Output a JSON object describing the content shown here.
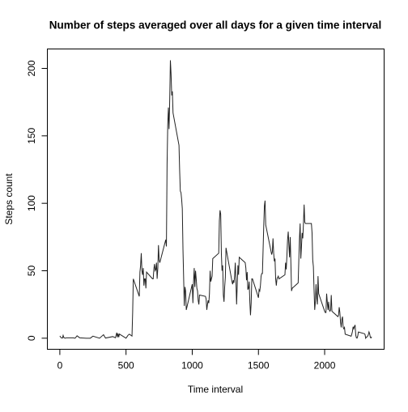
{
  "chart_data": {
    "type": "line",
    "title": "Number of steps averaged over all days for a given time interval",
    "x_label": "Time interval",
    "y_label": "Steps count",
    "color": "#222222",
    "xlim": [
      -94.2,
      2449.2
    ],
    "ylim": [
      -8.2,
      214.4
    ],
    "xticks": [
      0,
      500,
      1000,
      1500,
      2000
    ],
    "yticks": [
      0,
      50,
      100,
      150,
      200
    ],
    "x": [
      0,
      10,
      20,
      25,
      30,
      40,
      50,
      100,
      115,
      125,
      130,
      150,
      200,
      230,
      250,
      300,
      330,
      345,
      400,
      420,
      430,
      435,
      440,
      445,
      450,
      500,
      515,
      525,
      545,
      550,
      555,
      600,
      605,
      610,
      615,
      620,
      625,
      630,
      635,
      640,
      645,
      650,
      655,
      700,
      705,
      710,
      715,
      720,
      725,
      730,
      735,
      740,
      745,
      750,
      755,
      800,
      805,
      810,
      815,
      820,
      825,
      830,
      835,
      840,
      845,
      850,
      855,
      900,
      905,
      910,
      915,
      920,
      925,
      930,
      935,
      940,
      945,
      950,
      955,
      1000,
      1005,
      1010,
      1015,
      1020,
      1025,
      1030,
      1035,
      1040,
      1045,
      1050,
      1055,
      1100,
      1105,
      1110,
      1115,
      1120,
      1125,
      1130,
      1135,
      1140,
      1145,
      1150,
      1155,
      1200,
      1205,
      1210,
      1215,
      1220,
      1225,
      1230,
      1235,
      1240,
      1245,
      1250,
      1255,
      1300,
      1305,
      1310,
      1315,
      1320,
      1325,
      1330,
      1335,
      1340,
      1345,
      1350,
      1355,
      1400,
      1405,
      1410,
      1415,
      1420,
      1425,
      1430,
      1435,
      1440,
      1445,
      1450,
      1455,
      1500,
      1505,
      1510,
      1515,
      1520,
      1525,
      1530,
      1535,
      1540,
      1545,
      1550,
      1555,
      1600,
      1605,
      1610,
      1615,
      1620,
      1625,
      1630,
      1635,
      1640,
      1645,
      1650,
      1655,
      1700,
      1705,
      1710,
      1715,
      1720,
      1725,
      1730,
      1735,
      1740,
      1745,
      1750,
      1755,
      1800,
      1805,
      1810,
      1815,
      1820,
      1825,
      1830,
      1835,
      1840,
      1845,
      1850,
      1855,
      1900,
      1905,
      1910,
      1915,
      1920,
      1925,
      1930,
      1935,
      1940,
      1945,
      1950,
      1955,
      2000,
      2005,
      2010,
      2015,
      2020,
      2025,
      2030,
      2035,
      2040,
      2045,
      2050,
      2055,
      2100,
      2105,
      2110,
      2115,
      2120,
      2125,
      2130,
      2135,
      2140,
      2145,
      2150,
      2155,
      2200,
      2205,
      2210,
      2215,
      2220,
      2225,
      2230,
      2235,
      2240,
      2245,
      2250,
      2255,
      2300,
      2305,
      2310,
      2315,
      2320,
      2325,
      2330,
      2335,
      2340,
      2345,
      2350,
      2355
    ],
    "values": [
      1.7,
      0.3,
      0.1,
      2.1,
      0.5,
      0,
      0.3,
      0.3,
      0,
      1.1,
      1.8,
      0.3,
      0,
      0,
      1.5,
      0,
      2.6,
      0.1,
      1.2,
      0.3,
      4.1,
      0.7,
      3.5,
      0.8,
      3.1,
      0,
      2.2,
      3,
      1.6,
      19,
      44,
      31,
      49,
      54,
      63,
      50,
      47,
      52,
      39,
      44,
      44,
      37,
      49,
      44,
      44,
      51,
      55,
      50,
      51,
      56,
      44,
      52,
      69,
      58,
      56,
      73,
      68,
      129,
      158,
      171,
      155,
      177,
      206,
      196,
      180,
      183,
      167,
      143,
      124,
      109,
      108,
      103,
      96,
      66,
      45,
      24,
      38,
      35,
      21,
      40,
      26,
      42,
      52,
      38,
      50,
      44,
      37,
      35,
      28,
      25,
      32,
      31,
      29,
      21,
      25,
      28,
      26,
      33,
      50,
      42,
      44,
      46,
      59,
      63,
      87,
      94.8,
      92,
      63,
      50,
      54,
      32,
      27,
      38,
      45,
      67,
      42,
      40,
      43,
      41,
      46,
      56,
      43,
      25,
      40,
      54,
      47,
      60,
      56,
      52,
      43,
      49,
      36,
      37,
      42,
      27,
      17,
      26,
      44,
      44,
      30,
      36,
      35,
      39,
      46,
      48,
      48,
      65,
      83,
      98,
      102,
      84,
      62,
      64,
      74,
      63,
      57,
      59,
      44,
      39,
      44,
      45,
      46,
      44,
      47,
      56,
      51,
      61,
      73,
      79,
      69,
      60,
      75,
      56,
      35,
      37,
      41,
      58,
      74,
      85,
      59,
      68,
      78,
      74,
      85,
      99,
      86,
      85,
      85,
      78,
      58,
      53,
      36,
      21,
      27,
      40,
      30,
      25,
      46,
      33,
      20,
      19,
      19,
      33,
      27,
      21,
      27,
      21,
      20,
      21,
      32,
      20,
      16,
      17,
      23,
      19,
      12,
      8,
      14,
      16,
      8,
      7,
      8,
      3,
      1.5,
      3,
      5,
      8.5,
      7,
      8.7,
      9.8,
      2.2,
      0.3,
      0.1,
      1.6,
      4.6,
      3.3,
      2.8,
      0,
      0.8,
      1,
      1.6,
      2.6,
      4.7,
      3.3,
      0.6,
      0.2,
      1.1
    ]
  }
}
